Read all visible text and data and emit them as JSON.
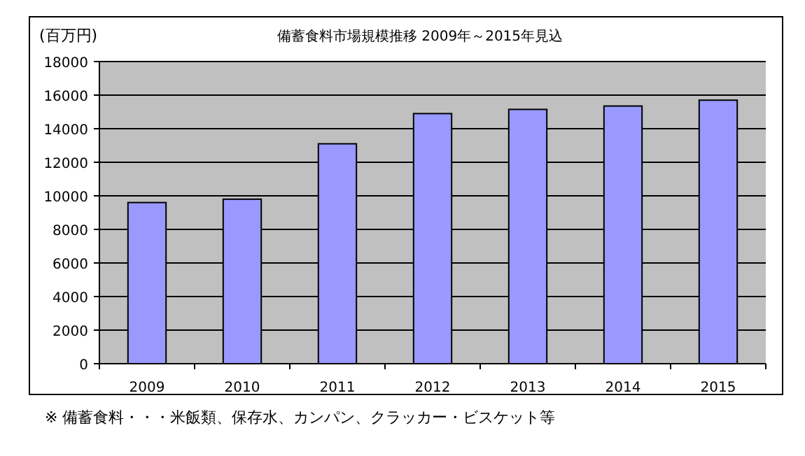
{
  "chart_data": {
    "type": "bar",
    "title": "備蓄食料市場規模推移  2009年～2015年見込",
    "ylabel": "(百万円)",
    "categories": [
      "2009",
      "2010",
      "2011",
      "2012",
      "2013",
      "2014",
      "2015"
    ],
    "values": [
      9600,
      9800,
      13100,
      14900,
      15150,
      15350,
      15700
    ],
    "color": "#9999ff",
    "ylim": [
      0,
      18000
    ],
    "yticks": [
      0,
      2000,
      4000,
      6000,
      8000,
      10000,
      12000,
      14000,
      16000,
      18000
    ],
    "grid": "y",
    "annotations": [
      "※ 備蓄食料・・・米飯類、保存水、カンパン、クラッカー・ビスケット等"
    ]
  }
}
